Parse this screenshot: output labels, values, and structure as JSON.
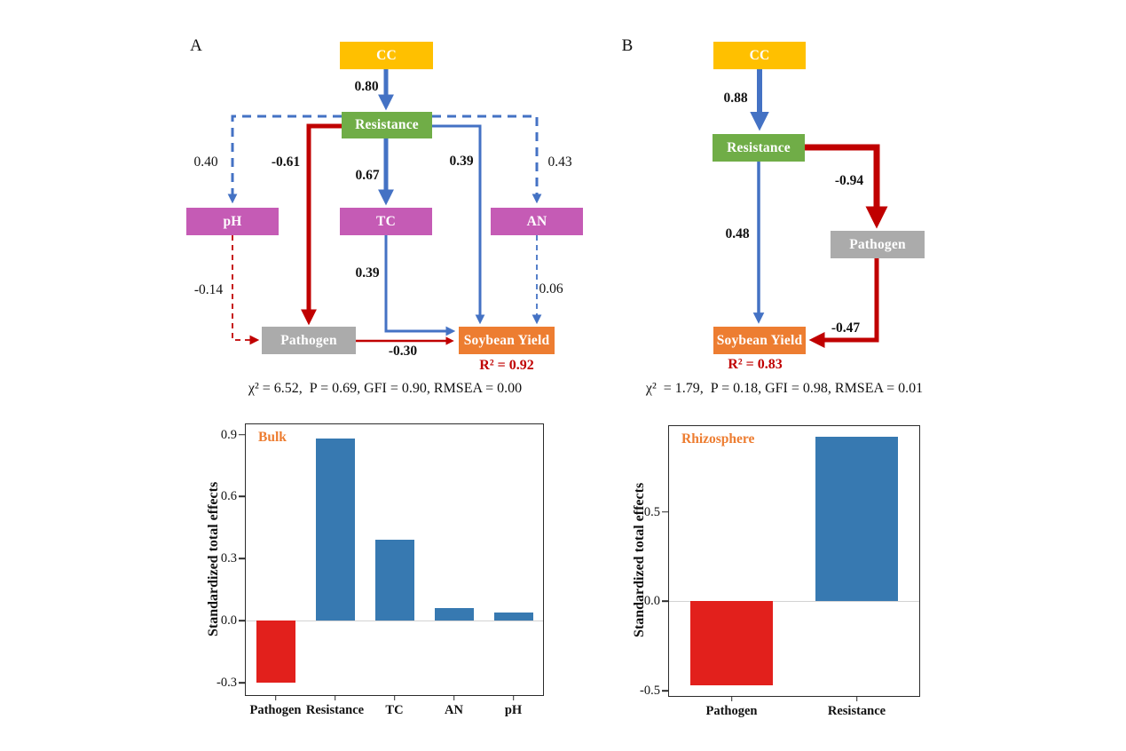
{
  "panels": {
    "A": {
      "label": "A",
      "nodes": {
        "cc": "CC",
        "resistance": "Resistance",
        "ph": "pH",
        "tc": "TC",
        "an": "AN",
        "pathogen": "Pathogen",
        "yield": "Soybean Yield"
      },
      "coefficients": {
        "cc_resistance": "0.80",
        "resistance_ph": "0.40",
        "resistance_pathogen": "-0.61",
        "resistance_tc": "0.67",
        "resistance_yield": "0.39",
        "resistance_an": "0.43",
        "ph_pathogen": "-0.14",
        "tc_yield": "0.39",
        "an_yield": "0.06",
        "pathogen_yield": "-0.30"
      },
      "r2": "R² = 0.92",
      "fit": "χ² = 6.52,  P = 0.69, GFI = 0.90, RMSEA = 0.00"
    },
    "B": {
      "label": "B",
      "nodes": {
        "cc": "CC",
        "resistance": "Resistance",
        "pathogen": "Pathogen",
        "yield": "Soybean Yield"
      },
      "coefficients": {
        "cc_resistance": "0.88",
        "resistance_pathogen": "-0.94",
        "resistance_yield": "0.48",
        "pathogen_yield": "-0.47"
      },
      "r2": "R² = 0.83",
      "fit": "χ²  = 1.79,  P = 0.18, GFI = 0.98, RMSEA = 0.01"
    }
  },
  "chart_data": [
    {
      "type": "bar",
      "annotation": "Bulk",
      "categories": [
        "Pathogen",
        "Resistance",
        "TC",
        "AN",
        "pH"
      ],
      "values": [
        -0.3,
        0.88,
        0.39,
        0.06,
        0.04
      ],
      "title": "",
      "xlabel": "",
      "ylabel": "Standardized total effects",
      "yticks": [
        0.9,
        0.6,
        0.3,
        0.0,
        -0.3
      ],
      "ylim": [
        -0.36,
        0.95
      ],
      "grid": "off",
      "zero_line": true,
      "positive_color": "#3779B1",
      "negative_color": "#E2201C",
      "annotation_color": "#ED7D31"
    },
    {
      "type": "bar",
      "annotation": "Rhizosphere",
      "categories": [
        "Pathogen",
        "Resistance"
      ],
      "values": [
        -0.47,
        0.92
      ],
      "title": "",
      "xlabel": "",
      "ylabel": "Standardized total effects",
      "yticks": [
        0.5,
        0.0,
        -0.5
      ],
      "ylim": [
        -0.53,
        0.98
      ],
      "grid": "off",
      "zero_line": true,
      "positive_color": "#3779B1",
      "negative_color": "#E2201C",
      "annotation_color": "#ED7D31"
    }
  ],
  "colors": {
    "cc_box": "#FFC000",
    "resistance_box": "#70AD47",
    "soil_box": "#C55BB5",
    "pathogen_box": "#ABABAB",
    "yield_box": "#ED7D31",
    "positive_path": "#4472C4",
    "negative_path": "#C00000",
    "r2_text": "#C00000"
  }
}
